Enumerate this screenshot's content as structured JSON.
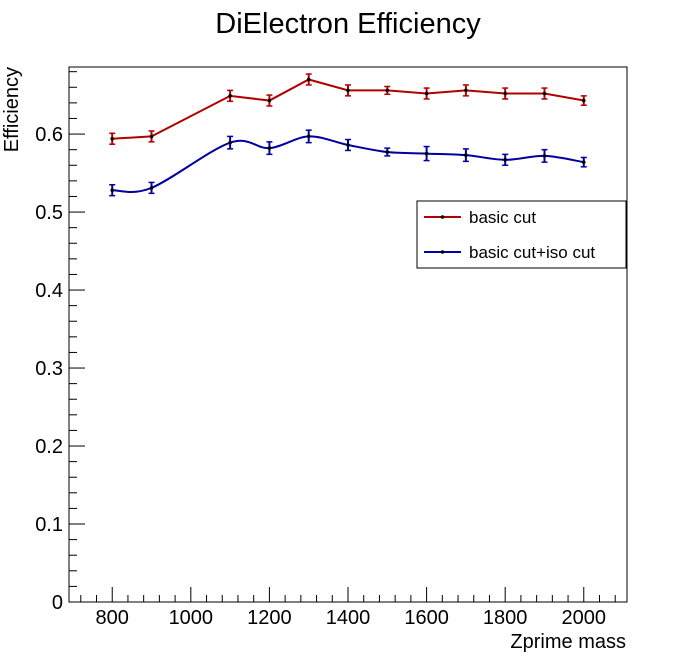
{
  "chart_data": {
    "type": "line",
    "title": "DiElectron Efficiency",
    "xlabel": "Zprime mass",
    "ylabel": "Efficiency",
    "xlim": [
      690,
      2110
    ],
    "ylim": [
      0,
      0.686
    ],
    "x_major_ticks": [
      800,
      1000,
      1200,
      1400,
      1600,
      1800,
      2000
    ],
    "x_tick_labels": [
      "800",
      "1000",
      "1200",
      "1400",
      "1600",
      "1800",
      "2000"
    ],
    "x_minor_step": 40,
    "y_major_ticks": [
      0,
      0.1,
      0.2,
      0.3,
      0.4,
      0.5,
      0.6
    ],
    "y_tick_labels": [
      "0",
      "0.1",
      "0.2",
      "0.3",
      "0.4",
      "0.5",
      "0.6"
    ],
    "y_minor_step": 0.02,
    "grid": false,
    "legend_position": "right-middle-upper",
    "x": [
      800,
      900,
      1100,
      1200,
      1300,
      1400,
      1500,
      1600,
      1700,
      1800,
      1900,
      2000
    ],
    "series": [
      {
        "name": "basic cut",
        "color": "#b00000",
        "smooth": false,
        "values": [
          0.594,
          0.597,
          0.649,
          0.643,
          0.67,
          0.656,
          0.656,
          0.652,
          0.656,
          0.652,
          0.652,
          0.643
        ],
        "errors": [
          0.007,
          0.007,
          0.007,
          0.007,
          0.007,
          0.007,
          0.005,
          0.007,
          0.007,
          0.007,
          0.007,
          0.006
        ]
      },
      {
        "name": "basic cut+iso cut",
        "color": "#0000a0",
        "smooth": true,
        "values": [
          0.528,
          0.531,
          0.589,
          0.582,
          0.597,
          0.586,
          0.577,
          0.575,
          0.573,
          0.567,
          0.572,
          0.564
        ],
        "errors": [
          0.007,
          0.007,
          0.008,
          0.008,
          0.008,
          0.007,
          0.005,
          0.009,
          0.008,
          0.007,
          0.008,
          0.006
        ]
      }
    ]
  }
}
